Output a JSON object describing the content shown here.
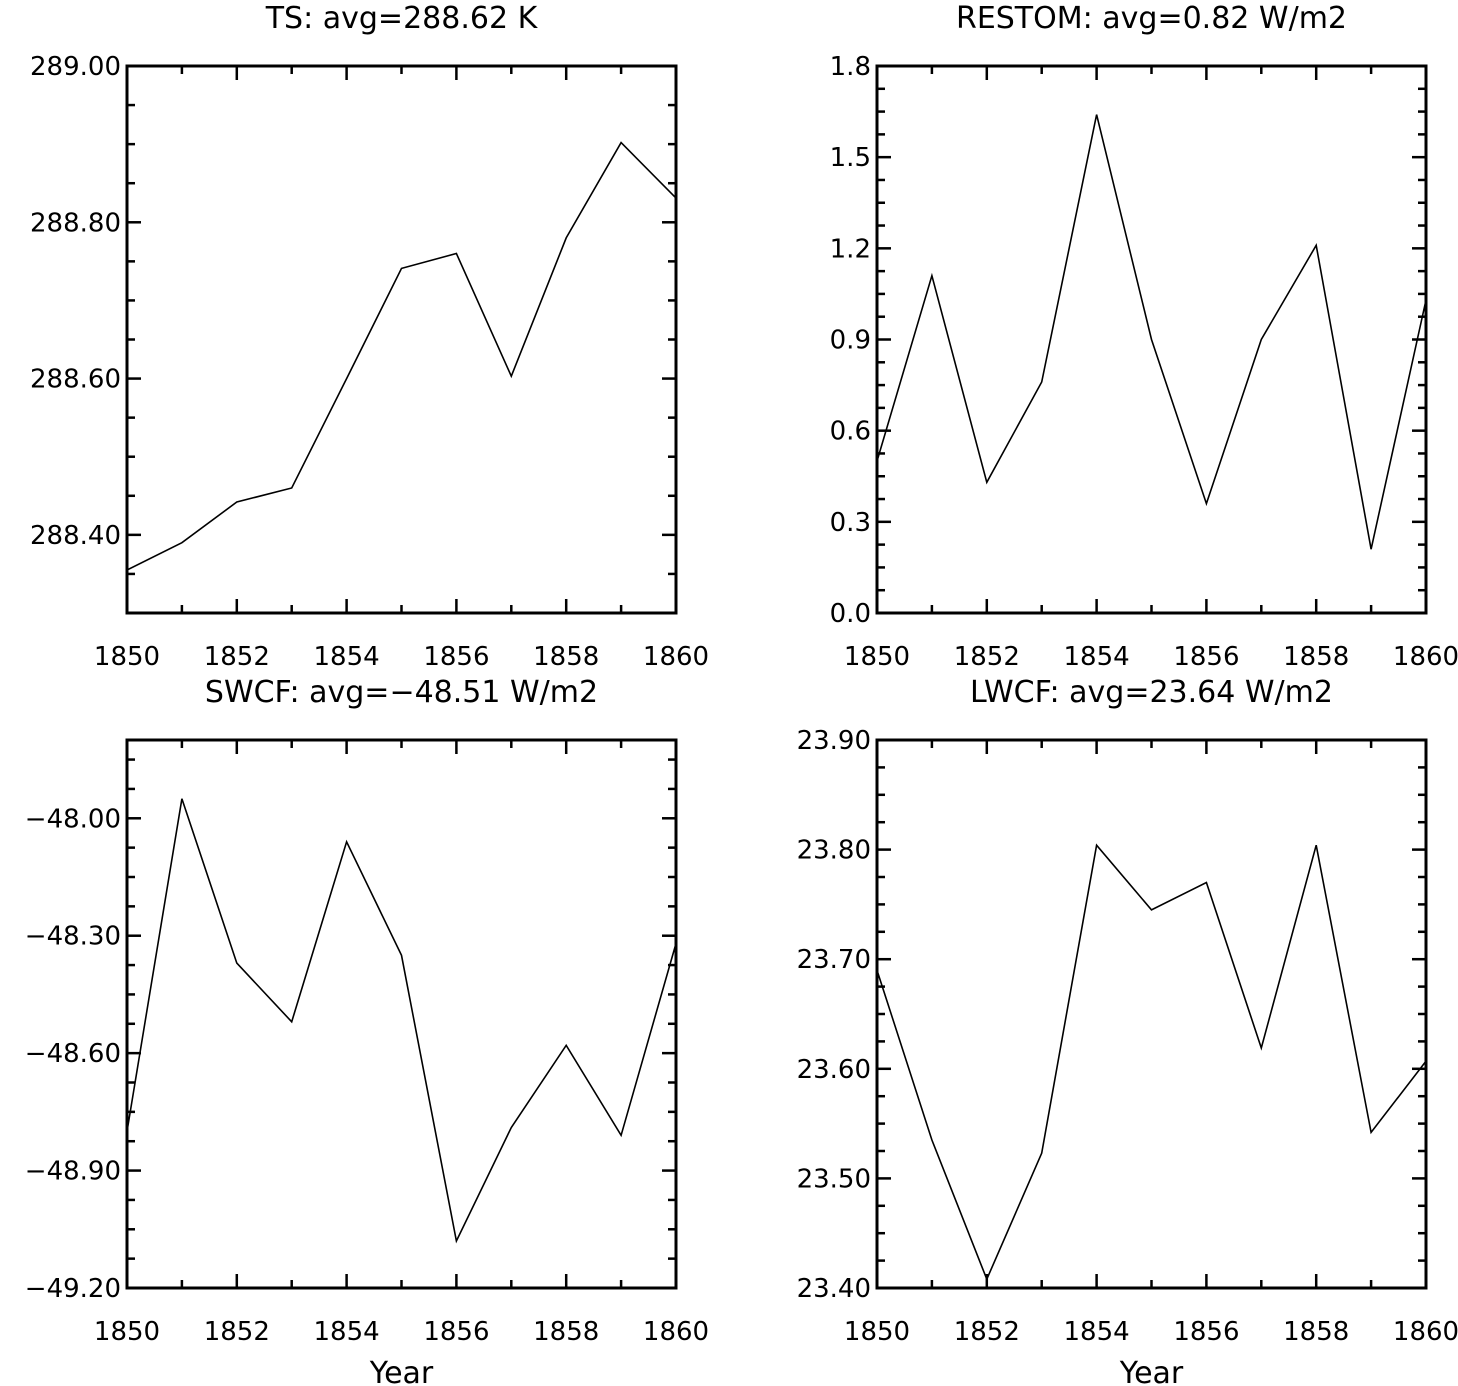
{
  "chart_data": [
    {
      "type": "line",
      "title": "TS: avg=288.62 K",
      "xlabel": "",
      "ylabel": "",
      "xlim": [
        1850,
        1860
      ],
      "ylim": [
        288.3,
        289.0
      ],
      "x": [
        1850,
        1851,
        1852,
        1853,
        1854,
        1855,
        1856,
        1857,
        1858,
        1859,
        1860
      ],
      "y": [
        288.355,
        288.39,
        288.442,
        288.46,
        288.6,
        288.741,
        288.76,
        288.603,
        288.78,
        288.902,
        288.831
      ],
      "xticks": [
        "1850",
        "1852",
        "1854",
        "1856",
        "1858",
        "1860"
      ],
      "yticks": [
        "288.40",
        "288.60",
        "288.80",
        "289.00"
      ],
      "grid": false
    },
    {
      "type": "line",
      "title": "RESTOM: avg=0.82 W/m2",
      "xlabel": "",
      "ylabel": "",
      "xlim": [
        1850,
        1860
      ],
      "ylim": [
        0.0,
        1.8
      ],
      "x": [
        1850,
        1851,
        1852,
        1853,
        1854,
        1855,
        1856,
        1857,
        1858,
        1859,
        1860
      ],
      "y": [
        0.5,
        1.11,
        0.43,
        0.76,
        1.64,
        0.9,
        0.36,
        0.9,
        1.21,
        0.21,
        1.03
      ],
      "xticks": [
        "1850",
        "1852",
        "1854",
        "1856",
        "1858",
        "1860"
      ],
      "yticks": [
        "0.0",
        "0.3",
        "0.6",
        "0.9",
        "1.2",
        "1.5",
        "1.8"
      ],
      "grid": false
    },
    {
      "type": "line",
      "title": "SWCF: avg=−48.51 W/m2",
      "xlabel": "Year",
      "ylabel": "",
      "xlim": [
        1850,
        1860
      ],
      "ylim": [
        -49.2,
        -47.8
      ],
      "x": [
        1850,
        1851,
        1852,
        1853,
        1854,
        1855,
        1856,
        1857,
        1858,
        1859,
        1860
      ],
      "y": [
        -48.8,
        -47.95,
        -48.37,
        -48.52,
        -48.06,
        -48.35,
        -49.08,
        -48.79,
        -48.58,
        -48.81,
        -48.32
      ],
      "xticks": [
        "1850",
        "1852",
        "1854",
        "1856",
        "1858",
        "1860"
      ],
      "yticks": [
        "−48.00",
        "−48.30",
        "−48.60",
        "−48.90",
        "−49.20"
      ],
      "grid": false
    },
    {
      "type": "line",
      "title": "LWCF: avg=23.64 W/m2",
      "xlabel": "Year",
      "ylabel": "",
      "xlim": [
        1850,
        1860
      ],
      "ylim": [
        23.4,
        23.9
      ],
      "x": [
        1850,
        1851,
        1852,
        1853,
        1854,
        1855,
        1856,
        1857,
        1858,
        1859,
        1860
      ],
      "y": [
        23.69,
        23.535,
        23.408,
        23.523,
        23.804,
        23.745,
        23.77,
        23.619,
        23.804,
        23.542,
        23.607
      ],
      "xticks": [
        "1850",
        "1852",
        "1854",
        "1856",
        "1858",
        "1860"
      ],
      "yticks": [
        "23.40",
        "23.50",
        "23.60",
        "23.70",
        "23.80",
        "23.90"
      ],
      "grid": false
    }
  ]
}
